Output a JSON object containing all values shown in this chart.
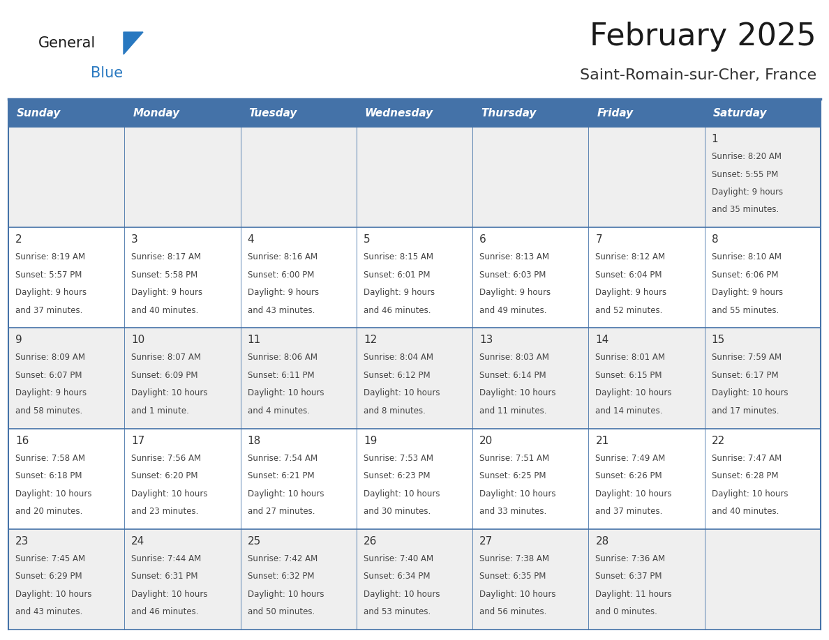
{
  "title": "February 2025",
  "subtitle": "Saint-Romain-sur-Cher, France",
  "header_bg": "#4472A8",
  "header_text_color": "#FFFFFF",
  "cell_bg_odd": "#EFEFEF",
  "cell_bg_even": "#FFFFFF",
  "border_color": "#4472A8",
  "day_headers": [
    "Sunday",
    "Monday",
    "Tuesday",
    "Wednesday",
    "Thursday",
    "Friday",
    "Saturday"
  ],
  "title_color": "#1a1a1a",
  "subtitle_color": "#333333",
  "number_color": "#333333",
  "text_color": "#444444",
  "logo_general_color": "#1a1a1a",
  "logo_blue_color": "#2878C0",
  "weeks": [
    [
      {
        "day": null,
        "info": ""
      },
      {
        "day": null,
        "info": ""
      },
      {
        "day": null,
        "info": ""
      },
      {
        "day": null,
        "info": ""
      },
      {
        "day": null,
        "info": ""
      },
      {
        "day": null,
        "info": ""
      },
      {
        "day": 1,
        "info": "Sunrise: 8:20 AM\nSunset: 5:55 PM\nDaylight: 9 hours\nand 35 minutes."
      }
    ],
    [
      {
        "day": 2,
        "info": "Sunrise: 8:19 AM\nSunset: 5:57 PM\nDaylight: 9 hours\nand 37 minutes."
      },
      {
        "day": 3,
        "info": "Sunrise: 8:17 AM\nSunset: 5:58 PM\nDaylight: 9 hours\nand 40 minutes."
      },
      {
        "day": 4,
        "info": "Sunrise: 8:16 AM\nSunset: 6:00 PM\nDaylight: 9 hours\nand 43 minutes."
      },
      {
        "day": 5,
        "info": "Sunrise: 8:15 AM\nSunset: 6:01 PM\nDaylight: 9 hours\nand 46 minutes."
      },
      {
        "day": 6,
        "info": "Sunrise: 8:13 AM\nSunset: 6:03 PM\nDaylight: 9 hours\nand 49 minutes."
      },
      {
        "day": 7,
        "info": "Sunrise: 8:12 AM\nSunset: 6:04 PM\nDaylight: 9 hours\nand 52 minutes."
      },
      {
        "day": 8,
        "info": "Sunrise: 8:10 AM\nSunset: 6:06 PM\nDaylight: 9 hours\nand 55 minutes."
      }
    ],
    [
      {
        "day": 9,
        "info": "Sunrise: 8:09 AM\nSunset: 6:07 PM\nDaylight: 9 hours\nand 58 minutes."
      },
      {
        "day": 10,
        "info": "Sunrise: 8:07 AM\nSunset: 6:09 PM\nDaylight: 10 hours\nand 1 minute."
      },
      {
        "day": 11,
        "info": "Sunrise: 8:06 AM\nSunset: 6:11 PM\nDaylight: 10 hours\nand 4 minutes."
      },
      {
        "day": 12,
        "info": "Sunrise: 8:04 AM\nSunset: 6:12 PM\nDaylight: 10 hours\nand 8 minutes."
      },
      {
        "day": 13,
        "info": "Sunrise: 8:03 AM\nSunset: 6:14 PM\nDaylight: 10 hours\nand 11 minutes."
      },
      {
        "day": 14,
        "info": "Sunrise: 8:01 AM\nSunset: 6:15 PM\nDaylight: 10 hours\nand 14 minutes."
      },
      {
        "day": 15,
        "info": "Sunrise: 7:59 AM\nSunset: 6:17 PM\nDaylight: 10 hours\nand 17 minutes."
      }
    ],
    [
      {
        "day": 16,
        "info": "Sunrise: 7:58 AM\nSunset: 6:18 PM\nDaylight: 10 hours\nand 20 minutes."
      },
      {
        "day": 17,
        "info": "Sunrise: 7:56 AM\nSunset: 6:20 PM\nDaylight: 10 hours\nand 23 minutes."
      },
      {
        "day": 18,
        "info": "Sunrise: 7:54 AM\nSunset: 6:21 PM\nDaylight: 10 hours\nand 27 minutes."
      },
      {
        "day": 19,
        "info": "Sunrise: 7:53 AM\nSunset: 6:23 PM\nDaylight: 10 hours\nand 30 minutes."
      },
      {
        "day": 20,
        "info": "Sunrise: 7:51 AM\nSunset: 6:25 PM\nDaylight: 10 hours\nand 33 minutes."
      },
      {
        "day": 21,
        "info": "Sunrise: 7:49 AM\nSunset: 6:26 PM\nDaylight: 10 hours\nand 37 minutes."
      },
      {
        "day": 22,
        "info": "Sunrise: 7:47 AM\nSunset: 6:28 PM\nDaylight: 10 hours\nand 40 minutes."
      }
    ],
    [
      {
        "day": 23,
        "info": "Sunrise: 7:45 AM\nSunset: 6:29 PM\nDaylight: 10 hours\nand 43 minutes."
      },
      {
        "day": 24,
        "info": "Sunrise: 7:44 AM\nSunset: 6:31 PM\nDaylight: 10 hours\nand 46 minutes."
      },
      {
        "day": 25,
        "info": "Sunrise: 7:42 AM\nSunset: 6:32 PM\nDaylight: 10 hours\nand 50 minutes."
      },
      {
        "day": 26,
        "info": "Sunrise: 7:40 AM\nSunset: 6:34 PM\nDaylight: 10 hours\nand 53 minutes."
      },
      {
        "day": 27,
        "info": "Sunrise: 7:38 AM\nSunset: 6:35 PM\nDaylight: 10 hours\nand 56 minutes."
      },
      {
        "day": 28,
        "info": "Sunrise: 7:36 AM\nSunset: 6:37 PM\nDaylight: 11 hours\nand 0 minutes."
      },
      {
        "day": null,
        "info": ""
      }
    ]
  ]
}
